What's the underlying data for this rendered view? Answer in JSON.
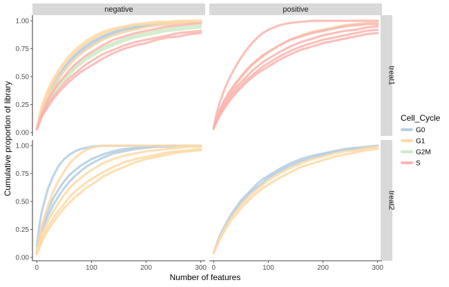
{
  "chart_data": {
    "type": "line",
    "title": "",
    "xlabel": "Number of features",
    "ylabel": "Cumulative proportion of library",
    "xlim": [
      -8,
      308
    ],
    "ylim": [
      -0.03,
      1.05
    ],
    "x_ticks": [
      0,
      100,
      200,
      300
    ],
    "x_tick_labels": [
      "0",
      "100",
      "200",
      "300"
    ],
    "y_ticks": [
      0,
      0.25,
      0.5,
      0.75,
      1.0
    ],
    "y_tick_labels": [
      "0.00",
      "0.25",
      "0.50",
      "0.75",
      "1.00"
    ],
    "grid": false,
    "facet_columns": [
      "negative",
      "positive"
    ],
    "facet_rows": [
      "treat1",
      "treat2"
    ],
    "legend": {
      "title": "Cell_Cycle",
      "position": "right",
      "entries": [
        {
          "label": "G0",
          "color": "#b3cde3"
        },
        {
          "label": "G1",
          "color": "#fed9a6"
        },
        {
          "label": "G2M",
          "color": "#ccebc5"
        },
        {
          "label": "S",
          "color": "#fbb4ae"
        }
      ]
    },
    "x": [
      0,
      5,
      10,
      20,
      30,
      40,
      50,
      60,
      70,
      80,
      90,
      100,
      120,
      140,
      160,
      180,
      200,
      220,
      240,
      260,
      280,
      300
    ],
    "panels": [
      {
        "column": "negative",
        "row": "treat1",
        "series": [
          {
            "group": "G0",
            "values": [
              0.03,
              0.14,
              0.22,
              0.34,
              0.44,
              0.52,
              0.59,
              0.65,
              0.7,
              0.74,
              0.78,
              0.81,
              0.86,
              0.9,
              0.93,
              0.95,
              0.96,
              0.97,
              0.98,
              0.99,
              0.99,
              1.0
            ]
          },
          {
            "group": "G0",
            "values": [
              0.03,
              0.13,
              0.21,
              0.33,
              0.42,
              0.5,
              0.57,
              0.63,
              0.68,
              0.72,
              0.76,
              0.79,
              0.85,
              0.89,
              0.92,
              0.94,
              0.96,
              0.97,
              0.98,
              0.99,
              0.99,
              0.99
            ]
          },
          {
            "group": "G0",
            "values": [
              0.03,
              0.12,
              0.2,
              0.31,
              0.4,
              0.48,
              0.55,
              0.61,
              0.66,
              0.7,
              0.74,
              0.77,
              0.83,
              0.87,
              0.9,
              0.93,
              0.95,
              0.96,
              0.97,
              0.98,
              0.99,
              0.99
            ]
          },
          {
            "group": "G1",
            "values": [
              0.04,
              0.16,
              0.25,
              0.38,
              0.48,
              0.56,
              0.63,
              0.69,
              0.74,
              0.78,
              0.82,
              0.85,
              0.9,
              0.93,
              0.95,
              0.97,
              0.98,
              0.99,
              0.99,
              1.0,
              1.0,
              1.0
            ]
          },
          {
            "group": "G1",
            "values": [
              0.04,
              0.15,
              0.24,
              0.36,
              0.46,
              0.54,
              0.61,
              0.67,
              0.72,
              0.76,
              0.8,
              0.83,
              0.88,
              0.92,
              0.94,
              0.96,
              0.97,
              0.98,
              0.99,
              0.99,
              1.0,
              1.0
            ]
          },
          {
            "group": "G1",
            "values": [
              0.03,
              0.13,
              0.21,
              0.32,
              0.41,
              0.49,
              0.55,
              0.61,
              0.66,
              0.7,
              0.74,
              0.77,
              0.83,
              0.87,
              0.9,
              0.92,
              0.94,
              0.96,
              0.97,
              0.98,
              0.98,
              0.99
            ]
          },
          {
            "group": "G2M",
            "values": [
              0.03,
              0.11,
              0.18,
              0.28,
              0.36,
              0.43,
              0.49,
              0.54,
              0.59,
              0.63,
              0.67,
              0.7,
              0.76,
              0.8,
              0.84,
              0.87,
              0.89,
              0.91,
              0.93,
              0.94,
              0.95,
              0.96
            ]
          },
          {
            "group": "G2M",
            "values": [
              0.03,
              0.1,
              0.17,
              0.26,
              0.34,
              0.41,
              0.47,
              0.52,
              0.57,
              0.61,
              0.65,
              0.68,
              0.74,
              0.78,
              0.82,
              0.85,
              0.87,
              0.89,
              0.91,
              0.92,
              0.93,
              0.94
            ]
          },
          {
            "group": "S",
            "values": [
              0.03,
              0.11,
              0.18,
              0.29,
              0.37,
              0.44,
              0.5,
              0.56,
              0.61,
              0.65,
              0.69,
              0.72,
              0.78,
              0.83,
              0.86,
              0.89,
              0.91,
              0.93,
              0.95,
              0.96,
              0.97,
              0.98
            ]
          },
          {
            "group": "S",
            "values": [
              0.03,
              0.1,
              0.16,
              0.25,
              0.32,
              0.38,
              0.44,
              0.49,
              0.53,
              0.57,
              0.61,
              0.64,
              0.7,
              0.74,
              0.78,
              0.81,
              0.83,
              0.85,
              0.87,
              0.89,
              0.9,
              0.91
            ]
          },
          {
            "group": "S",
            "values": [
              0.03,
              0.09,
              0.15,
              0.23,
              0.3,
              0.36,
              0.41,
              0.46,
              0.5,
              0.54,
              0.57,
              0.6,
              0.66,
              0.71,
              0.75,
              0.78,
              0.8,
              0.83,
              0.85,
              0.86,
              0.88,
              0.89
            ]
          }
        ]
      },
      {
        "column": "positive",
        "row": "treat1",
        "series": [
          {
            "group": "G0",
            "values": [
              0.03,
              0.12,
              0.19,
              0.29,
              0.37,
              0.44,
              0.5,
              0.55,
              0.6,
              0.65,
              0.69,
              0.72,
              0.78,
              0.83,
              0.87,
              0.9,
              0.92,
              0.94,
              0.96,
              0.97,
              0.98,
              0.99
            ]
          },
          {
            "group": "G1",
            "values": [
              0.03,
              0.11,
              0.18,
              0.28,
              0.36,
              0.43,
              0.49,
              0.55,
              0.6,
              0.64,
              0.68,
              0.72,
              0.78,
              0.83,
              0.87,
              0.9,
              0.92,
              0.94,
              0.96,
              0.97,
              0.98,
              0.99
            ]
          },
          {
            "group": "S",
            "values": [
              0.05,
              0.16,
              0.25,
              0.39,
              0.5,
              0.59,
              0.67,
              0.74,
              0.8,
              0.85,
              0.89,
              0.92,
              0.96,
              0.98,
              0.99,
              1.0,
              1.0,
              1.0,
              1.0,
              1.0,
              1.0,
              1.0
            ]
          },
          {
            "group": "S",
            "values": [
              0.04,
              0.11,
              0.18,
              0.29,
              0.37,
              0.44,
              0.5,
              0.56,
              0.61,
              0.65,
              0.69,
              0.72,
              0.78,
              0.83,
              0.86,
              0.89,
              0.91,
              0.93,
              0.95,
              0.96,
              0.97,
              0.97
            ]
          },
          {
            "group": "S",
            "values": [
              0.04,
              0.1,
              0.16,
              0.26,
              0.33,
              0.4,
              0.45,
              0.5,
              0.55,
              0.59,
              0.63,
              0.66,
              0.72,
              0.77,
              0.81,
              0.84,
              0.87,
              0.89,
              0.91,
              0.92,
              0.94,
              0.95
            ]
          },
          {
            "group": "S",
            "values": [
              0.04,
              0.1,
              0.15,
              0.24,
              0.31,
              0.37,
              0.42,
              0.47,
              0.51,
              0.55,
              0.59,
              0.62,
              0.68,
              0.73,
              0.77,
              0.8,
              0.83,
              0.85,
              0.87,
              0.89,
              0.91,
              0.92
            ]
          },
          {
            "group": "S",
            "values": [
              0.04,
              0.09,
              0.14,
              0.22,
              0.29,
              0.35,
              0.4,
              0.45,
              0.49,
              0.53,
              0.56,
              0.59,
              0.65,
              0.7,
              0.74,
              0.77,
              0.8,
              0.82,
              0.84,
              0.86,
              0.88,
              0.89
            ]
          }
        ]
      },
      {
        "column": "negative",
        "row": "treat2",
        "series": [
          {
            "group": "G0",
            "values": [
              0.1,
              0.3,
              0.43,
              0.61,
              0.73,
              0.82,
              0.88,
              0.92,
              0.95,
              0.97,
              0.98,
              0.99,
              1.0,
              1.0,
              1.0,
              1.0,
              1.0,
              1.0,
              1.0,
              1.0,
              1.0,
              1.0
            ]
          },
          {
            "group": "G0",
            "values": [
              0.05,
              0.18,
              0.28,
              0.42,
              0.53,
              0.61,
              0.68,
              0.74,
              0.78,
              0.82,
              0.85,
              0.88,
              0.92,
              0.95,
              0.97,
              0.98,
              0.99,
              0.99,
              1.0,
              1.0,
              1.0,
              1.0
            ]
          },
          {
            "group": "G0",
            "values": [
              0.04,
              0.15,
              0.24,
              0.37,
              0.47,
              0.55,
              0.62,
              0.68,
              0.73,
              0.77,
              0.81,
              0.84,
              0.89,
              0.93,
              0.95,
              0.97,
              0.98,
              0.99,
              0.99,
              1.0,
              1.0,
              1.0
            ]
          },
          {
            "group": "G1",
            "values": [
              0.06,
              0.19,
              0.3,
              0.46,
              0.59,
              0.69,
              0.77,
              0.84,
              0.89,
              0.93,
              0.96,
              0.98,
              1.0,
              1.0,
              1.0,
              1.0,
              1.0,
              1.0,
              1.0,
              1.0,
              1.0,
              1.0
            ]
          },
          {
            "group": "G1",
            "values": [
              0.04,
              0.13,
              0.21,
              0.32,
              0.41,
              0.49,
              0.56,
              0.62,
              0.67,
              0.71,
              0.75,
              0.78,
              0.84,
              0.88,
              0.91,
              0.93,
              0.95,
              0.96,
              0.97,
              0.98,
              0.99,
              0.99
            ]
          },
          {
            "group": "G1",
            "values": [
              0.03,
              0.1,
              0.17,
              0.27,
              0.35,
              0.42,
              0.48,
              0.54,
              0.59,
              0.63,
              0.67,
              0.7,
              0.76,
              0.81,
              0.85,
              0.88,
              0.9,
              0.92,
              0.94,
              0.95,
              0.96,
              0.97
            ]
          },
          {
            "group": "G1",
            "values": [
              0.03,
              0.09,
              0.15,
              0.24,
              0.31,
              0.38,
              0.44,
              0.49,
              0.54,
              0.58,
              0.62,
              0.65,
              0.72,
              0.77,
              0.81,
              0.85,
              0.88,
              0.9,
              0.92,
              0.94,
              0.95,
              0.96
            ]
          }
        ]
      },
      {
        "column": "positive",
        "row": "treat2",
        "series": [
          {
            "group": "G0",
            "values": [
              0.04,
              0.11,
              0.18,
              0.28,
              0.37,
              0.44,
              0.51,
              0.56,
              0.61,
              0.66,
              0.7,
              0.73,
              0.79,
              0.84,
              0.88,
              0.91,
              0.93,
              0.95,
              0.97,
              0.98,
              0.99,
              1.0
            ]
          },
          {
            "group": "G0",
            "values": [
              0.04,
              0.1,
              0.17,
              0.27,
              0.35,
              0.42,
              0.48,
              0.54,
              0.59,
              0.63,
              0.67,
              0.71,
              0.77,
              0.82,
              0.86,
              0.89,
              0.92,
              0.94,
              0.96,
              0.97,
              0.98,
              0.99
            ]
          },
          {
            "group": "G1",
            "values": [
              0.04,
              0.1,
              0.16,
              0.26,
              0.34,
              0.41,
              0.47,
              0.52,
              0.57,
              0.61,
              0.65,
              0.69,
              0.75,
              0.8,
              0.84,
              0.88,
              0.9,
              0.93,
              0.95,
              0.96,
              0.98,
              0.99
            ]
          },
          {
            "group": "G1",
            "values": [
              0.04,
              0.09,
              0.15,
              0.24,
              0.32,
              0.38,
              0.44,
              0.49,
              0.54,
              0.58,
              0.62,
              0.65,
              0.71,
              0.76,
              0.81,
              0.84,
              0.87,
              0.9,
              0.92,
              0.94,
              0.96,
              0.97
            ]
          }
        ]
      }
    ]
  }
}
